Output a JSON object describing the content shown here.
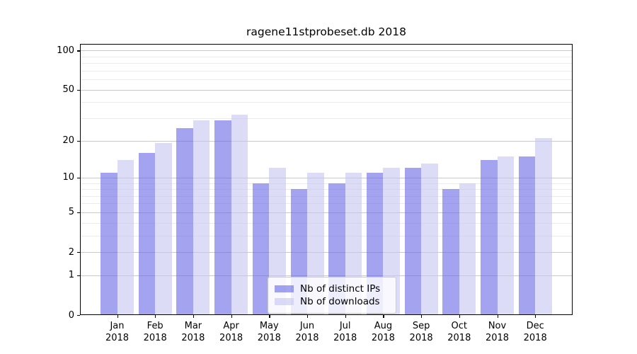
{
  "chart_data": {
    "type": "bar",
    "title": "ragene11stprobeset.db 2018",
    "x": {
      "categories": [
        "Jan",
        "Feb",
        "Mar",
        "Apr",
        "May",
        "Jun",
        "Jul",
        "Aug",
        "Sep",
        "Oct",
        "Nov",
        "Dec"
      ],
      "year_suffix": "2018"
    },
    "y_axis": {
      "scale": "log1p",
      "major_ticks": [
        0,
        1,
        2,
        5,
        10,
        20,
        50,
        100
      ],
      "minor_gridlines": [
        3,
        4,
        6,
        7,
        8,
        9,
        30,
        40,
        60,
        70,
        80,
        90
      ],
      "ylim": [
        0,
        112.4
      ],
      "grid": true
    },
    "series": [
      {
        "name": "Nb of distinct IPs",
        "color": "rgba(102,102,230,0.6)",
        "values": [
          11,
          16,
          25,
          29,
          9,
          8,
          9,
          11,
          12,
          8,
          14,
          15
        ]
      },
      {
        "name": "Nb of downloads",
        "color": "rgba(197,197,241,0.6)",
        "values": [
          14,
          19,
          29,
          32,
          12,
          11,
          11,
          12,
          13,
          9,
          15,
          21
        ]
      }
    ],
    "legend": {
      "position": "inside-bottom-center"
    },
    "colors": {
      "grid_major": "#c9c9c9",
      "grid_minor": "#ebebeb",
      "spine": "#000000",
      "background": "#ffffff"
    }
  }
}
